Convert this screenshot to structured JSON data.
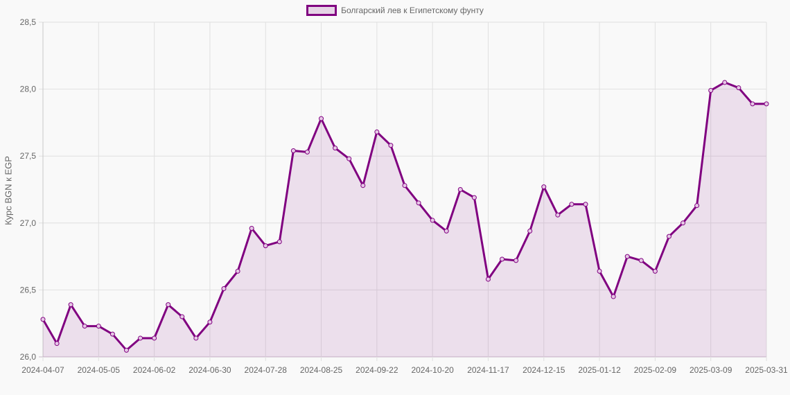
{
  "chart_data": {
    "type": "line",
    "title": "",
    "legend": [
      "Болгарский лев к Египетскому фунту"
    ],
    "legend_position": "top",
    "xlabel": "",
    "ylabel": "Курс BGN к EGP",
    "ylim": [
      26.0,
      28.5
    ],
    "yticks": [
      "26,0",
      "26,5",
      "27,0",
      "27,5",
      "28,0",
      "28,5"
    ],
    "xtick_labels": [
      "2024-04-07",
      "2024-05-05",
      "2024-06-02",
      "2024-06-30",
      "2024-07-28",
      "2024-08-25",
      "2024-09-22",
      "2024-10-20",
      "2024-11-17",
      "2024-12-15",
      "2025-01-12",
      "2025-02-09",
      "2025-03-09",
      "2025-03-31"
    ],
    "grid": true,
    "fill": true,
    "colors": {
      "line": "#800080",
      "fill": "rgba(128,0,128,0.1)"
    },
    "x": [
      "2024-04-07",
      "2024-04-14",
      "2024-04-21",
      "2024-04-28",
      "2024-05-05",
      "2024-05-12",
      "2024-05-19",
      "2024-05-26",
      "2024-06-02",
      "2024-06-09",
      "2024-06-16",
      "2024-06-23",
      "2024-06-30",
      "2024-07-07",
      "2024-07-14",
      "2024-07-21",
      "2024-07-28",
      "2024-08-04",
      "2024-08-11",
      "2024-08-18",
      "2024-08-25",
      "2024-09-01",
      "2024-09-08",
      "2024-09-15",
      "2024-09-22",
      "2024-09-29",
      "2024-10-06",
      "2024-10-13",
      "2024-10-20",
      "2024-10-27",
      "2024-11-03",
      "2024-11-10",
      "2024-11-17",
      "2024-11-24",
      "2024-12-01",
      "2024-12-08",
      "2024-12-15",
      "2024-12-22",
      "2024-12-29",
      "2025-01-05",
      "2025-01-12",
      "2025-01-19",
      "2025-01-26",
      "2025-02-02",
      "2025-02-09",
      "2025-02-16",
      "2025-02-23",
      "2025-03-02",
      "2025-03-09",
      "2025-03-16",
      "2025-03-23",
      "2025-03-30",
      "2025-03-31"
    ],
    "series": [
      {
        "name": "Болгарский лев к Египетскому фунту",
        "values": [
          26.28,
          26.1,
          26.39,
          26.23,
          26.23,
          26.17,
          26.05,
          26.14,
          26.14,
          26.39,
          26.3,
          26.14,
          26.26,
          26.51,
          26.64,
          26.96,
          26.83,
          26.86,
          27.54,
          27.53,
          27.78,
          27.56,
          27.48,
          27.28,
          27.68,
          27.58,
          27.28,
          27.15,
          27.02,
          26.94,
          27.25,
          27.19,
          26.58,
          26.73,
          26.72,
          26.94,
          27.27,
          27.06,
          27.14,
          27.14,
          26.64,
          26.45,
          26.75,
          26.72,
          26.64,
          26.9,
          27.0,
          27.13,
          27.99,
          28.05,
          28.01,
          27.89,
          27.89
        ]
      }
    ]
  }
}
